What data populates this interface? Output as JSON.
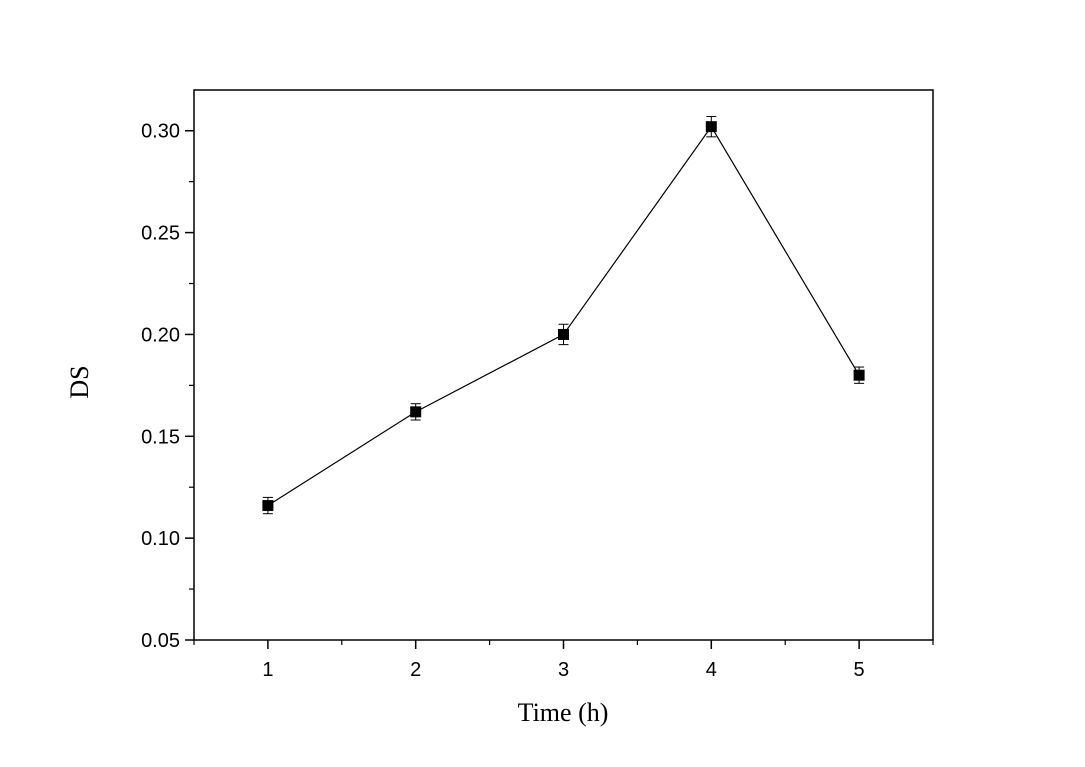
{
  "chart_data": {
    "type": "line",
    "title": "",
    "xlabel": "Time (h)",
    "ylabel": "DS",
    "xlim": [
      0.5,
      5.5
    ],
    "ylim": [
      0.05,
      0.32
    ],
    "x_ticks": [
      1,
      2,
      3,
      4,
      5
    ],
    "x_tick_labels": [
      "1",
      "2",
      "3",
      "4",
      "5"
    ],
    "x_minor_ticks": [
      0.5,
      1.5,
      2.5,
      3.5,
      4.5,
      5.5
    ],
    "y_ticks": [
      0.05,
      0.1,
      0.15,
      0.2,
      0.25,
      0.3
    ],
    "y_tick_labels": [
      "0.05",
      "0.10",
      "0.15",
      "0.20",
      "0.25",
      "0.30"
    ],
    "y_minor_ticks": [
      0.075,
      0.125,
      0.175,
      0.225,
      0.275
    ],
    "grid": false,
    "legend": "none",
    "series": [
      {
        "x": [
          1,
          2,
          3,
          4,
          5
        ],
        "y": [
          0.116,
          0.162,
          0.2,
          0.302,
          0.18
        ],
        "error": [
          0.004,
          0.004,
          0.005,
          0.005,
          0.004
        ],
        "marker": "square",
        "color": "#000000"
      }
    ]
  }
}
